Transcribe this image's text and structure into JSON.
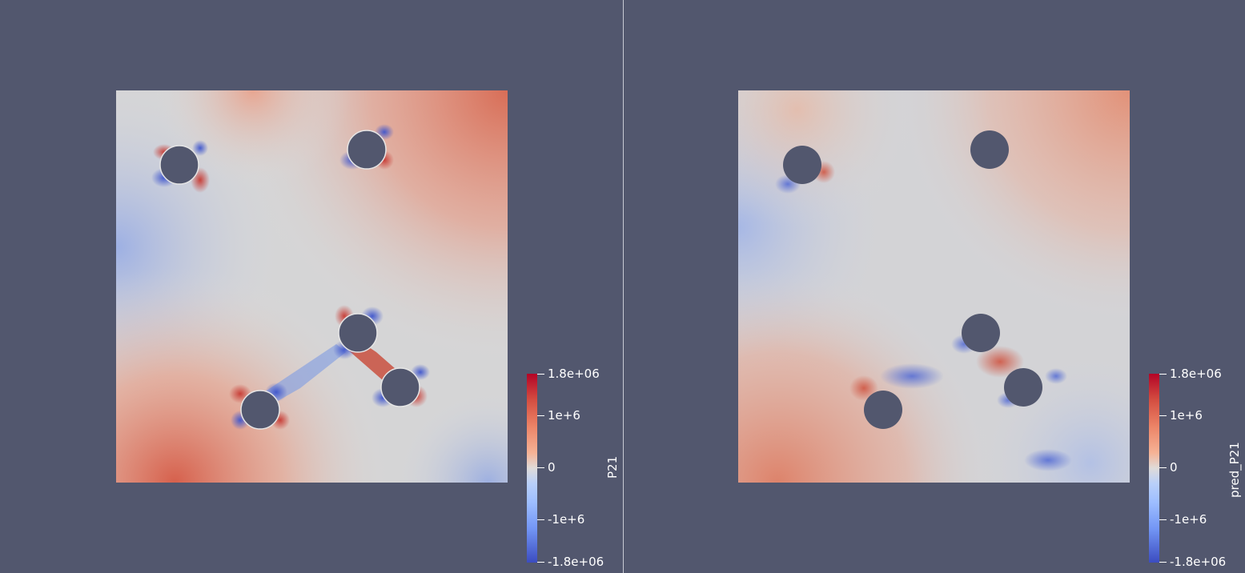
{
  "left_view": {
    "scalar_field": "P21",
    "colorbar": {
      "title": "P21",
      "ticks": [
        "1.8e+06",
        "1e+6",
        "0",
        "-1e+6",
        "-1.8e+06"
      ],
      "range": [
        -1800000,
        1800000
      ]
    }
  },
  "right_view": {
    "scalar_field": "pred_P21",
    "colorbar": {
      "title": "pred_P21",
      "ticks": [
        "1.8e+06",
        "1e+6",
        "0",
        "-1e+6",
        "-1.8e+06"
      ],
      "range": [
        -1800000,
        1800000
      ]
    }
  },
  "colors": {
    "background": "#52576e",
    "colormap_max": "#b40426",
    "colormap_mid": "#dddcdb",
    "colormap_min": "#3b4cc0",
    "hole_fill": "#52576e"
  },
  "colormap": "Cool to Warm"
}
